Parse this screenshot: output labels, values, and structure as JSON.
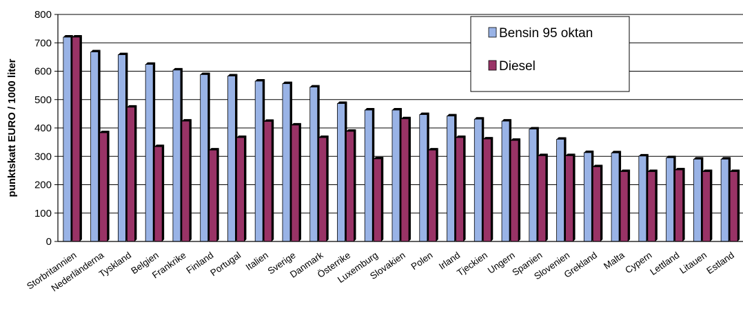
{
  "chart_data": {
    "type": "bar",
    "ylabel": "punktskatt EURO / 1000 liter",
    "ylim": [
      0,
      800
    ],
    "yticks": [
      0,
      100,
      200,
      300,
      400,
      500,
      600,
      700,
      800
    ],
    "grid": true,
    "legend_position": "top-right",
    "categories": [
      "Storbritannien",
      "Nederländerna",
      "Tyskland",
      "Belgien",
      "Frankrike",
      "Finland",
      "Portugal",
      "Italien",
      "Sverige",
      "Danmark",
      "Österrike",
      "Luxemburg",
      "Slovakien",
      "Polen",
      "Irland",
      "Tjeckien",
      "Ungern",
      "Spanien",
      "Slovenien",
      "Grekland",
      "Malta",
      "Cypern",
      "Lettland",
      "Litauen",
      "Estland"
    ],
    "series": [
      {
        "name": "Bensin 95 oktan",
        "color": "#99b3e6",
        "values": [
          720,
          668,
          658,
          624,
          604,
          588,
          583,
          565,
          556,
          544,
          486,
          463,
          463,
          447,
          442,
          431,
          424,
          396,
          360,
          313,
          312,
          301,
          295,
          290,
          290
        ]
      },
      {
        "name": "Diesel",
        "color": "#993366",
        "values": [
          720,
          383,
          473,
          334,
          424,
          322,
          366,
          423,
          410,
          366,
          388,
          291,
          432,
          322,
          366,
          361,
          356,
          302,
          302,
          263,
          246,
          246,
          252,
          246,
          246
        ]
      }
    ]
  }
}
